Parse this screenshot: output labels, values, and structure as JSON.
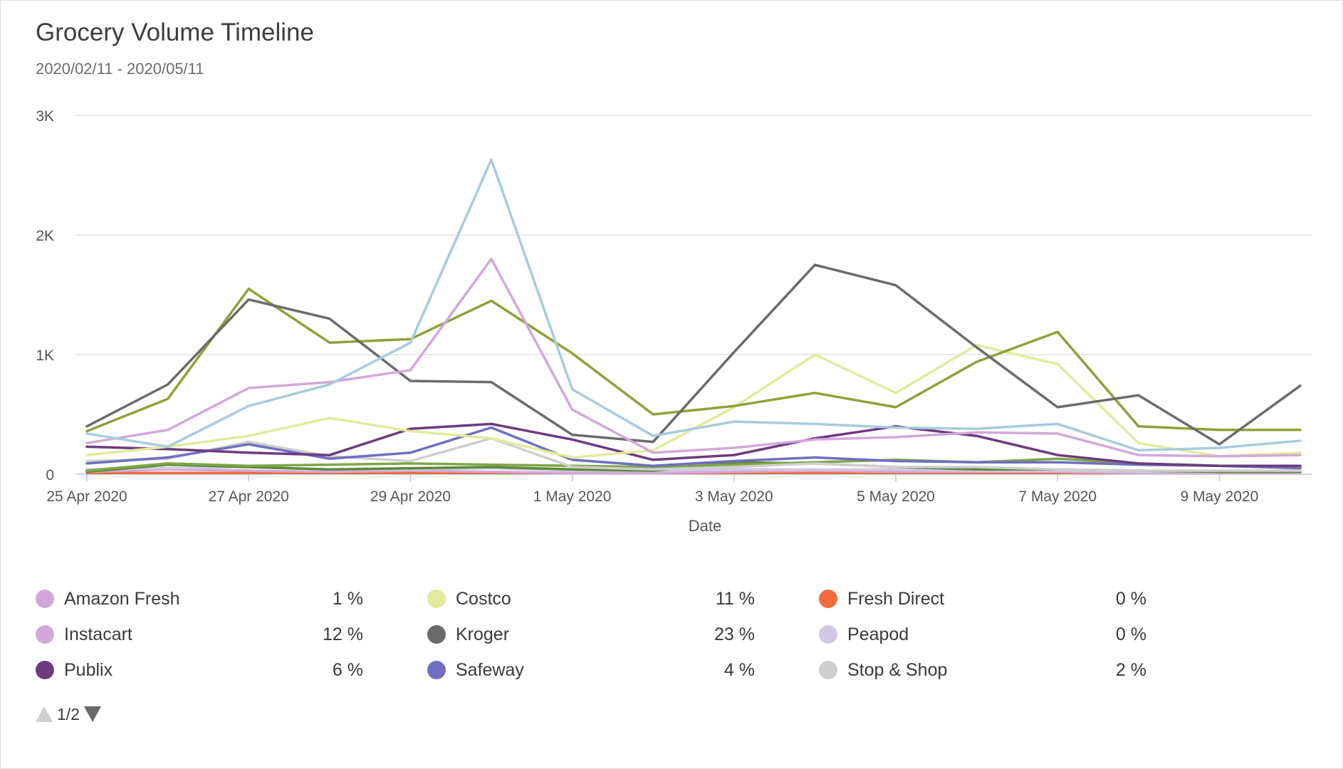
{
  "header": {
    "title": "Grocery Volume Timeline",
    "subtitle": "2020/02/11 - 2020/05/11"
  },
  "legend": {
    "items": [
      {
        "name": "Amazon Fresh",
        "percent": "1 %",
        "color": "#d2a8d9"
      },
      {
        "name": "Instacart",
        "percent": "12 %",
        "color": "#d2a8d9"
      },
      {
        "name": "Publix",
        "percent": "6 %",
        "color": "#6e3b7f"
      },
      {
        "name": "Costco",
        "percent": "11 %",
        "color": "#e3ea9c"
      },
      {
        "name": "Kroger",
        "percent": "23 %",
        "color": "#6b6b6b"
      },
      {
        "name": "Safeway",
        "percent": "4 %",
        "color": "#6f6fc0"
      },
      {
        "name": "Fresh Direct",
        "percent": "0 %",
        "color": "#f26d3d"
      },
      {
        "name": "Peapod",
        "percent": "0 %",
        "color": "#d2c8e4"
      },
      {
        "name": "Stop & Shop",
        "percent": "2 %",
        "color": "#cfcfcf"
      }
    ]
  },
  "pager": {
    "label": "1/2"
  },
  "chart_data": {
    "type": "line",
    "title": "Grocery Volume Timeline",
    "subtitle": "2020/02/11 - 2020/05/11",
    "xlabel": "Date",
    "ylabel": "",
    "x": [
      "25 Apr 2020",
      "26 Apr 2020",
      "27 Apr 2020",
      "28 Apr 2020",
      "29 Apr 2020",
      "30 Apr 2020",
      "1 May 2020",
      "2 May 2020",
      "3 May 2020",
      "4 May 2020",
      "5 May 2020",
      "6 May 2020",
      "7 May 2020",
      "8 May 2020",
      "9 May 2020",
      "10 May 2020"
    ],
    "x_tick_labels": [
      "25 Apr 2020",
      "27 Apr 2020",
      "29 Apr 2020",
      "1 May 2020",
      "3 May 2020",
      "5 May 2020",
      "7 May 2020",
      "9 May 2020"
    ],
    "ylim": [
      0,
      3000
    ],
    "y_ticks": [
      0,
      1000,
      2000,
      3000
    ],
    "y_tick_labels": [
      "0",
      "1K",
      "2K",
      "3K"
    ],
    "grid": true,
    "legend_position": "bottom",
    "series": [
      {
        "name": "Instacart",
        "color": "#d2a8d9",
        "values": [
          260,
          370,
          720,
          770,
          870,
          1800,
          540,
          180,
          220,
          290,
          310,
          350,
          340,
          160,
          150,
          160
        ]
      },
      {
        "name": "Amazon Fresh",
        "color": "#d2a8d9",
        "values": [
          20,
          40,
          30,
          20,
          30,
          20,
          10,
          10,
          20,
          30,
          20,
          20,
          20,
          10,
          10,
          10
        ]
      },
      {
        "name": "Publix",
        "color": "#6e3b7f",
        "values": [
          230,
          210,
          180,
          160,
          380,
          420,
          290,
          120,
          160,
          300,
          400,
          320,
          160,
          90,
          70,
          70
        ]
      },
      {
        "name": "Costco",
        "color": "#e3ea9c",
        "values": [
          160,
          230,
          320,
          470,
          360,
          300,
          140,
          200,
          560,
          1000,
          680,
          1080,
          920,
          260,
          150,
          180
        ]
      },
      {
        "name": "Kroger",
        "color": "#6b6b6b",
        "values": [
          400,
          750,
          1460,
          1300,
          780,
          770,
          330,
          270,
          1020,
          1750,
          1580,
          1060,
          560,
          660,
          250,
          740
        ]
      },
      {
        "name": "Safeway",
        "color": "#6f6fc0",
        "values": [
          90,
          140,
          250,
          130,
          180,
          390,
          120,
          70,
          110,
          140,
          110,
          100,
          100,
          80,
          70,
          50
        ]
      },
      {
        "name": "Fresh Direct",
        "color": "#f26d3d",
        "values": [
          10,
          10,
          10,
          10,
          10,
          10,
          10,
          10,
          10,
          10,
          10,
          10,
          10,
          10,
          10,
          10
        ]
      },
      {
        "name": "Peapod",
        "color": "#d2c8e4",
        "values": [
          40,
          50,
          60,
          40,
          40,
          50,
          30,
          30,
          40,
          40,
          40,
          30,
          30,
          20,
          20,
          20
        ]
      },
      {
        "name": "Stop & Shop",
        "color": "#cfcfcf",
        "values": [
          110,
          130,
          270,
          150,
          110,
          300,
          60,
          40,
          60,
          90,
          60,
          60,
          40,
          30,
          30,
          30
        ]
      },
      {
        "name": "",
        "color": "#8fa13a",
        "values": [
          360,
          630,
          1550,
          1100,
          1130,
          1450,
          1010,
          500,
          570,
          680,
          560,
          940,
          1190,
          400,
          370,
          370
        ]
      },
      {
        "name": "",
        "color": "#a7ccdc",
        "values": [
          340,
          230,
          570,
          750,
          1100,
          2630,
          710,
          320,
          440,
          420,
          390,
          380,
          420,
          200,
          220,
          280
        ]
      },
      {
        "name": "",
        "color": "#7fa646",
        "values": [
          30,
          90,
          70,
          80,
          90,
          80,
          70,
          60,
          80,
          100,
          120,
          100,
          130,
          90,
          70,
          60
        ]
      },
      {
        "name": "",
        "color": "#5a8a3a",
        "values": [
          20,
          80,
          60,
          40,
          50,
          60,
          40,
          30,
          100,
          90,
          60,
          40,
          40,
          30,
          20,
          20
        ]
      }
    ]
  }
}
